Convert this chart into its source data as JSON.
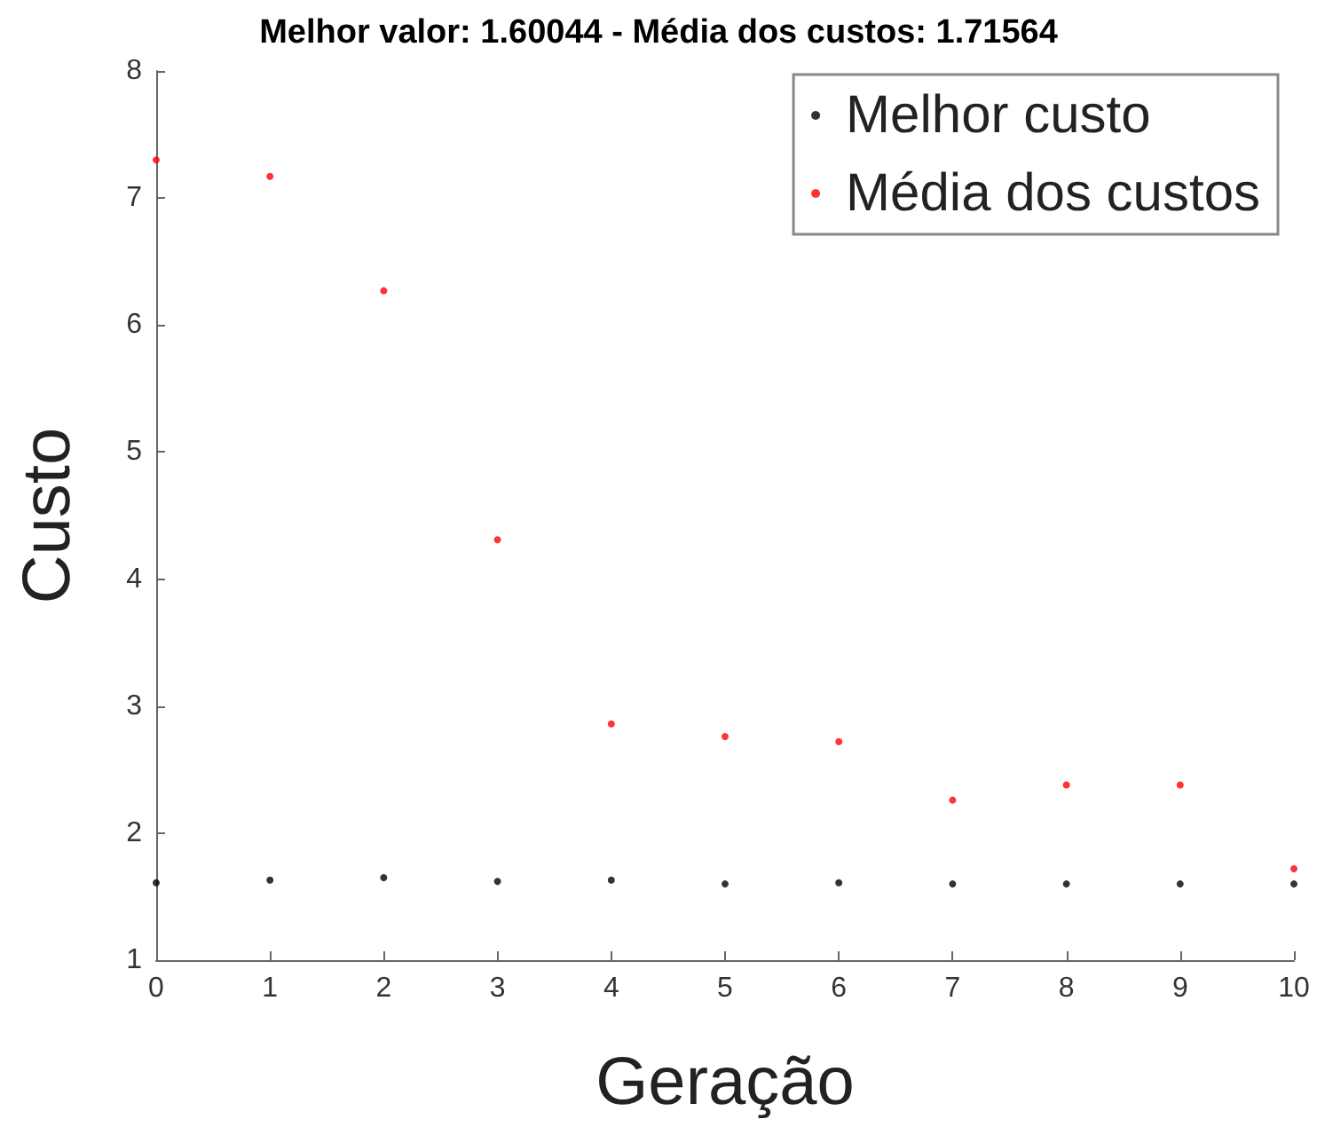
{
  "chart_data": {
    "type": "scatter",
    "title": "Melhor valor: 1.60044 - Média dos custos: 1.71564",
    "xlabel": "Geração",
    "ylabel": "Custo",
    "x": [
      0,
      1,
      2,
      3,
      4,
      5,
      6,
      7,
      8,
      9,
      10
    ],
    "series": [
      {
        "name": "Melhor custo",
        "color": "#000000",
        "values": [
          1.61,
          1.63,
          1.65,
          1.62,
          1.63,
          1.6,
          1.61,
          1.6,
          1.6,
          1.6,
          1.6
        ]
      },
      {
        "name": "Média dos custos",
        "color": "#ff0000",
        "values": [
          7.3,
          7.17,
          6.27,
          4.31,
          2.86,
          2.76,
          2.72,
          2.26,
          2.38,
          2.38,
          1.72
        ]
      }
    ],
    "xlim": [
      0,
      10
    ],
    "xticks": [
      0,
      1,
      2,
      3,
      4,
      5,
      6,
      7,
      8,
      9,
      10
    ],
    "ylim": [
      1,
      8
    ],
    "yticks": [
      1,
      2,
      3,
      4,
      5,
      6,
      7,
      8
    ],
    "grid": false,
    "legend": "top right",
    "marker": "circle"
  }
}
